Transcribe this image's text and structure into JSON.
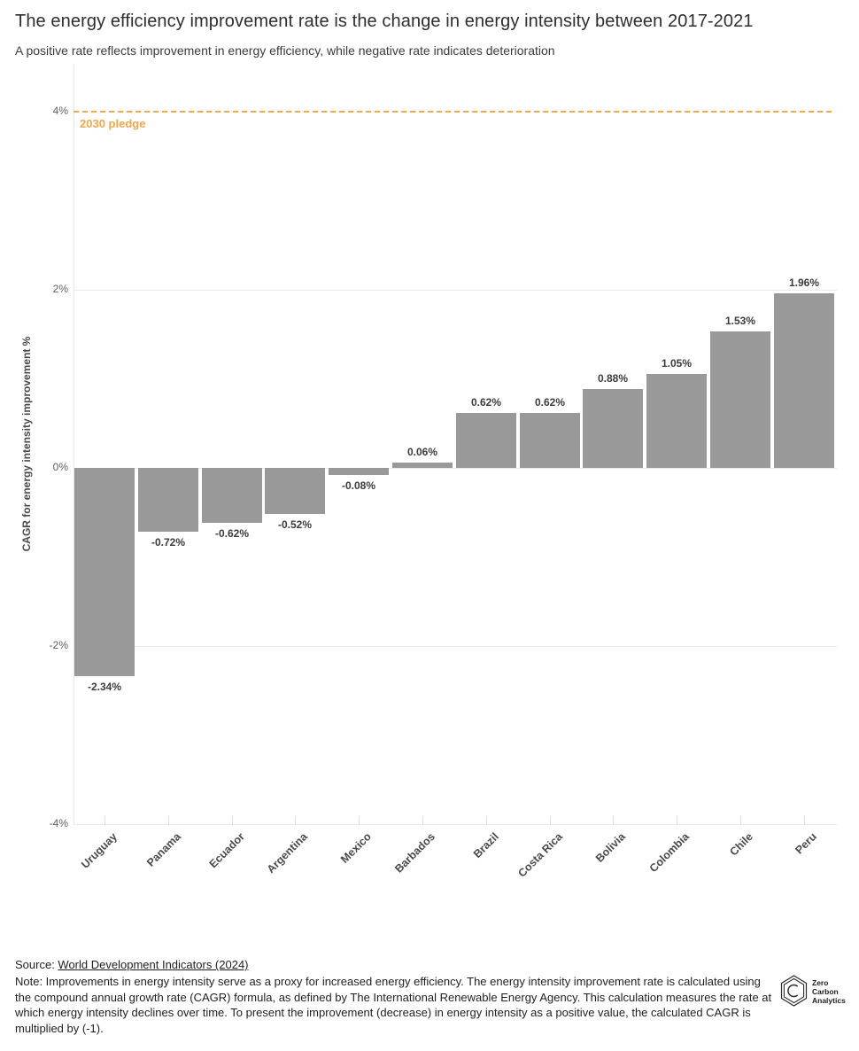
{
  "header": {
    "title": "The energy efficiency improvement rate is the change in energy intensity between 2017-2021",
    "subtitle": "A positive rate reflects improvement in energy efficiency, while negative rate indicates deterioration"
  },
  "chart_data": {
    "type": "bar",
    "title": "The energy efficiency improvement rate is the change in energy intensity between 2017-2021",
    "categories": [
      "Uruguay",
      "Panama",
      "Ecuador",
      "Argentina",
      "Mexico",
      "Barbados",
      "Brazil",
      "Costa Rica",
      "Bolivia",
      "Colombia",
      "Chile",
      "Peru"
    ],
    "values": [
      -2.34,
      -0.72,
      -0.62,
      -0.52,
      -0.08,
      0.06,
      0.62,
      0.62,
      0.88,
      1.05,
      1.53,
      1.96
    ],
    "value_labels": [
      "-2.34%",
      "-0.72%",
      "-0.62%",
      "-0.52%",
      "-0.08%",
      "0.06%",
      "0.62%",
      "0.62%",
      "0.88%",
      "1.05%",
      "1.53%",
      "1.96%"
    ],
    "xlabel": "",
    "ylabel": "CAGR for energy intensity improvement %",
    "ylim": [
      -4,
      4.4
    ],
    "yticks": [
      {
        "value": 4,
        "label": "4%"
      },
      {
        "value": 2,
        "label": "2%"
      },
      {
        "value": 0,
        "label": "0%"
      },
      {
        "value": -2,
        "label": "-2%"
      },
      {
        "value": -4,
        "label": "-4%"
      }
    ],
    "grid": true,
    "legend": null,
    "bar_color": "#999999",
    "reference_line": {
      "value": 4,
      "label": "2030 pledge",
      "color": "#F2A74B",
      "style": "dashed"
    }
  },
  "footer": {
    "source_prefix": "Source: ",
    "source_link": "World Development Indicators (2024)",
    "note": "Note: Improvements in energy intensity serve as a proxy for increased energy efficiency. The energy intensity improvement rate is calculated using the compound annual growth rate (CAGR) formula, as defined by The International Renewable Energy Agency. This calculation measures the rate at which energy intensity declines over time. To present the improvement (decrease) in energy intensity as a positive value, the calculated CAGR is multiplied by (-1).",
    "logo": {
      "icon": "zero-carbon-analytics-hexagon-c-logo",
      "lines": [
        "Zero",
        "Carbon",
        "Analytics"
      ]
    }
  }
}
